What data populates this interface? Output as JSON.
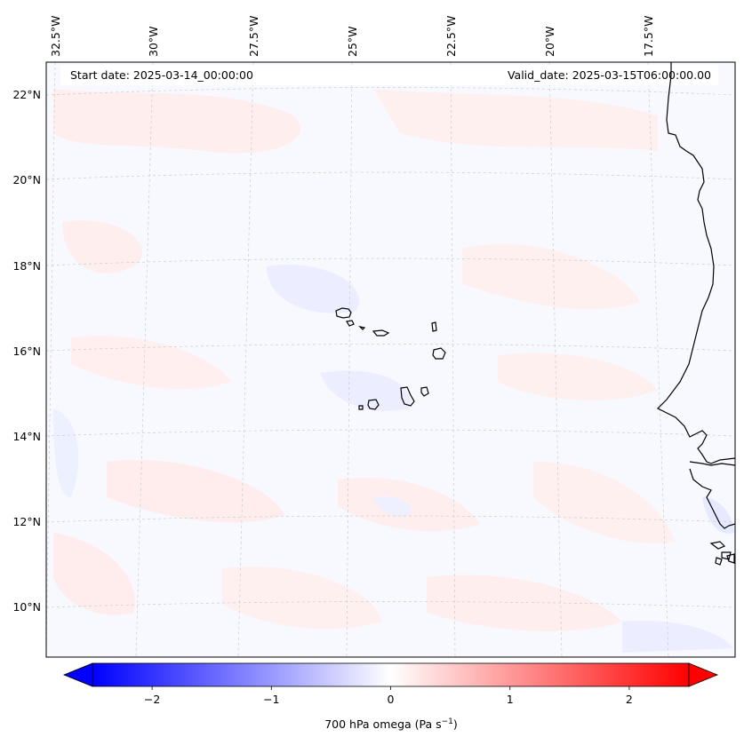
{
  "map": {
    "start_date": "Start date: 2025-03-14_00:00:00",
    "valid_date": "Valid_date: 2025-03-15T06:00:00.00",
    "lon_labels": [
      "32.5°W",
      "30°W",
      "27.5°W",
      "25°W",
      "22.5°W",
      "20°W",
      "17.5°W"
    ],
    "lat_labels": [
      "22°N",
      "20°N",
      "18°N",
      "16°N",
      "14°N",
      "12°N",
      "10°N"
    ],
    "colorbar": {
      "min": -2.5,
      "max": 2.5,
      "ticks": [
        "−2",
        "−1",
        "0",
        "1",
        "2"
      ],
      "label_text": "700 hPa omega (Pa s",
      "label_sup": "−1",
      "label_end": ")",
      "low_color": "#0000ff",
      "mid_color": "#ffffff",
      "high_color": "#ff0000"
    },
    "colors": {
      "background_field": "#f8f8ff",
      "positive_patch": "#ffecec",
      "negative_patch": "#e9ebff",
      "coastline": "#000000",
      "gridline": "#cccccc"
    }
  }
}
